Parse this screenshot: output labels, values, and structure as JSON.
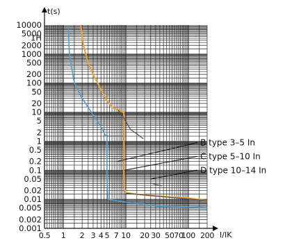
{
  "chart_data": {
    "type": "line",
    "title": "",
    "xlabel": "I/IK",
    "ylabel": "t(s)",
    "x_scale": "log",
    "y_scale": "log",
    "xlim": [
      0.5,
      200
    ],
    "ylim": [
      0.001,
      10000
    ],
    "grid": true,
    "x_ticks": [
      {
        "value": 0.5,
        "label": "0.5"
      },
      {
        "value": 1,
        "label": "1"
      },
      {
        "value": 2,
        "label": "2"
      },
      {
        "value": 3,
        "label": "3"
      },
      {
        "value": 4,
        "label": "4"
      },
      {
        "value": 5,
        "label": "5"
      },
      {
        "value": 7,
        "label": "7"
      },
      {
        "value": 10,
        "label": "10"
      },
      {
        "value": 20,
        "label": "20"
      },
      {
        "value": 30,
        "label": "30"
      },
      {
        "value": 50,
        "label": "50"
      },
      {
        "value": 70,
        "label": "70"
      },
      {
        "value": 100,
        "label": "100"
      },
      {
        "value": 200,
        "label": "200"
      }
    ],
    "y_ticks": [
      {
        "value": 10000,
        "label": "10000"
      },
      {
        "value": 5000,
        "label": "5000"
      },
      {
        "value": 3600,
        "label": "1H"
      },
      {
        "value": 2000,
        "label": "2000"
      },
      {
        "value": 1000,
        "label": "1000"
      },
      {
        "value": 500,
        "label": "500"
      },
      {
        "value": 200,
        "label": "200"
      },
      {
        "value": 100,
        "label": "100"
      },
      {
        "value": 50,
        "label": "50"
      },
      {
        "value": 20,
        "label": "20"
      },
      {
        "value": 10,
        "label": "10"
      },
      {
        "value": 5,
        "label": "5"
      },
      {
        "value": 2,
        "label": "2"
      },
      {
        "value": 1,
        "label": "1"
      },
      {
        "value": 0.5,
        "label": "0.5"
      },
      {
        "value": 0.2,
        "label": "0.2"
      },
      {
        "value": 0.1,
        "label": "0.1"
      },
      {
        "value": 0.05,
        "label": "0.05"
      },
      {
        "value": 0.02,
        "label": "0.02"
      },
      {
        "value": 0.01,
        "label": "0.01"
      },
      {
        "value": 0.005,
        "label": "0.005"
      },
      {
        "value": 0.002,
        "label": "0.002"
      },
      {
        "value": 0.001,
        "label": "0.001"
      }
    ],
    "series": [
      {
        "name": "B type 3–5 In",
        "color": "#4a9fd0",
        "points": [
          [
            1.2,
            10000
          ],
          [
            1.25,
            1000
          ],
          [
            1.5,
            100
          ],
          [
            2,
            30
          ],
          [
            3,
            8
          ],
          [
            4,
            3.2
          ],
          [
            4.7,
            1.6
          ],
          [
            5,
            1.6
          ],
          [
            5,
            0.05
          ],
          [
            5.2,
            0.01
          ],
          [
            10,
            0.008
          ],
          [
            30,
            0.006
          ],
          [
            200,
            0.005
          ]
        ]
      },
      {
        "name": "C type 5–10 In",
        "color": "#e8a040",
        "points": [
          [
            1.9,
            10000
          ],
          [
            2.1,
            2000
          ],
          [
            2.5,
            500
          ],
          [
            3,
            200
          ],
          [
            4,
            60
          ],
          [
            5,
            25
          ],
          [
            6,
            15
          ],
          [
            7.5,
            12
          ],
          [
            9,
            10
          ],
          [
            9.3,
            10
          ],
          [
            9.3,
            0.03
          ],
          [
            10,
            0.017
          ],
          [
            15,
            0.015
          ],
          [
            30,
            0.013
          ],
          [
            50,
            0.012
          ],
          [
            100,
            0.011
          ],
          [
            200,
            0.009
          ]
        ]
      },
      {
        "name": "D type 10–14 In",
        "color": "#444444",
        "points": [
          [
            7.5,
            12
          ],
          [
            9,
            7
          ],
          [
            12,
            2.5
          ],
          [
            15,
            1.8
          ],
          [
            19,
            1.2
          ]
        ]
      }
    ],
    "extra_lines": [
      {
        "name": "c-breaking-line",
        "color": "#444444",
        "points": [
          [
            10,
            0.016
          ],
          [
            200,
            0.009
          ]
        ]
      },
      {
        "name": "d-lower-dash",
        "color": "#444444",
        "points": [
          [
            26,
            0.035
          ],
          [
            38,
            0.029
          ]
        ]
      },
      {
        "name": "b-dashed-segment",
        "color": "#444444",
        "points": [
          [
            5,
            1.5
          ],
          [
            9,
            1.5
          ]
        ]
      }
    ],
    "annotations": [
      {
        "text": "B type 3–5 In",
        "anchor": [
          140,
          0.9
        ],
        "target": [
          7.2,
          0.2
        ]
      },
      {
        "text": "C type 5–10 In",
        "anchor": [
          140,
          0.3
        ],
        "target": [
          9.5,
          0.1
        ]
      },
      {
        "text": "D type 10–14 In",
        "anchor": [
          140,
          0.1
        ],
        "target": [
          25,
          0.05
        ]
      }
    ]
  }
}
